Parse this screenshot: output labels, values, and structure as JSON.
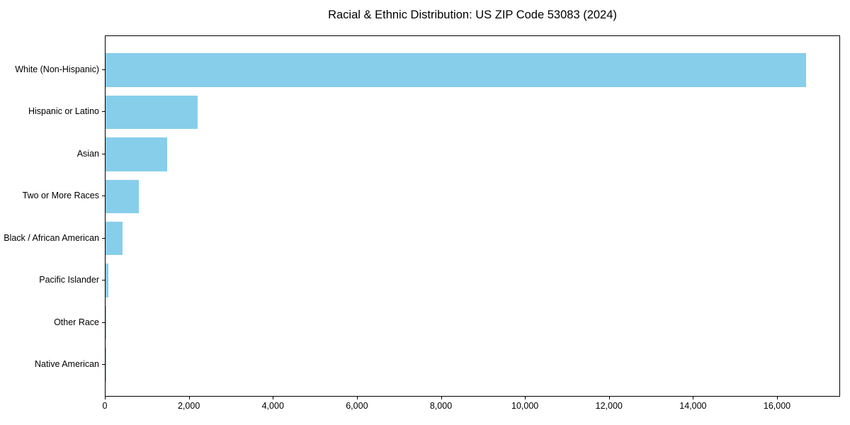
{
  "chart_data": {
    "type": "bar",
    "orientation": "horizontal",
    "title": "Racial & Ethnic Distribution: US ZIP Code 53083 (2024)",
    "categories": [
      "White (Non-Hispanic)",
      "Hispanic or Latino",
      "Asian",
      "Two or More Races",
      "Black / African American",
      "Pacific Islander",
      "Other Race",
      "Native American"
    ],
    "values": [
      16670,
      2190,
      1465,
      790,
      405,
      70,
      15,
      5
    ],
    "xlabel": "",
    "ylabel": "",
    "xlim": [
      0,
      17500
    ],
    "xticks": [
      0,
      2000,
      4000,
      6000,
      8000,
      10000,
      12000,
      14000,
      16000
    ],
    "xtick_labels": [
      "0",
      "2,000",
      "4,000",
      "6,000",
      "8,000",
      "10,000",
      "12,000",
      "14,000",
      "16,000"
    ],
    "bar_color": "#87CEEB",
    "axis_color": "#000000",
    "background_color": "#ffffff",
    "grid": false,
    "legend": null
  }
}
